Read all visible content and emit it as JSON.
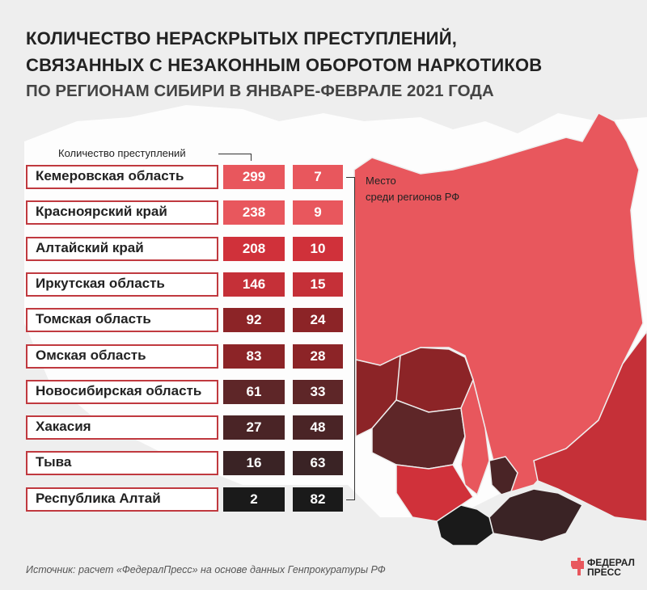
{
  "title": {
    "line1": "КОЛИЧЕСТВО НЕРАСКРЫТЫХ ПРЕСТУПЛЕНИЙ,",
    "line2": "СВЯЗАННЫХ С НЕЗАКОННЫМ ОБОРОТОМ НАРКОТИКОВ",
    "subtitle": "ПО РЕГИОНАМ СИБИРИ В ЯНВАРЕ-ФЕВРАЛЕ 2021 ГОДА"
  },
  "headers": {
    "count": "Количество преступлений",
    "rank_line1": "Место",
    "rank_line2": "среди регионов РФ"
  },
  "colors": {
    "scale": [
      "#e8575d",
      "#e8575d",
      "#d0313a",
      "#c53038",
      "#8c2427",
      "#8c2427",
      "#5e2628",
      "#4a2426",
      "#3a2325",
      "#1a1a1a"
    ],
    "name_border": "#c0393f",
    "map_land": "#ffffff",
    "background": "#eeeeee"
  },
  "chart_data": {
    "type": "table",
    "title": "КОЛИЧЕСТВО НЕРАСКРЫТЫХ ПРЕСТУПЛЕНИЙ, СВЯЗАННЫХ С НЕЗАКОННЫМ ОБОРОТОМ НАРКОТИКОВ",
    "subtitle": "ПО РЕГИОНАМ СИБИРИ В ЯНВАРЕ-ФЕВРАЛЕ 2021 ГОДА",
    "columns": [
      "Количество преступлений",
      "Место среди регионов РФ"
    ],
    "rows": [
      {
        "region": "Кемеровская область",
        "count": 299,
        "rank": 7
      },
      {
        "region": "Красноярский край",
        "count": 238,
        "rank": 9
      },
      {
        "region": "Алтайский край",
        "count": 208,
        "rank": 10
      },
      {
        "region": "Иркутская область",
        "count": 146,
        "rank": 15
      },
      {
        "region": "Томская область",
        "count": 92,
        "rank": 24
      },
      {
        "region": "Омская область",
        "count": 83,
        "rank": 28
      },
      {
        "region": "Новосибирская область",
        "count": 61,
        "rank": 33
      },
      {
        "region": "Хакасия",
        "count": 27,
        "rank": 48
      },
      {
        "region": "Тыва",
        "count": 16,
        "rank": 63
      },
      {
        "region": "Республика Алтай",
        "count": 2,
        "rank": 82
      }
    ]
  },
  "source": "Источник: расчет «ФедералПресс» на основе данных Генпрокуратуры РФ",
  "logo": {
    "line1": "ФЕДЕРАЛ",
    "line2": "ПРЕСС"
  }
}
